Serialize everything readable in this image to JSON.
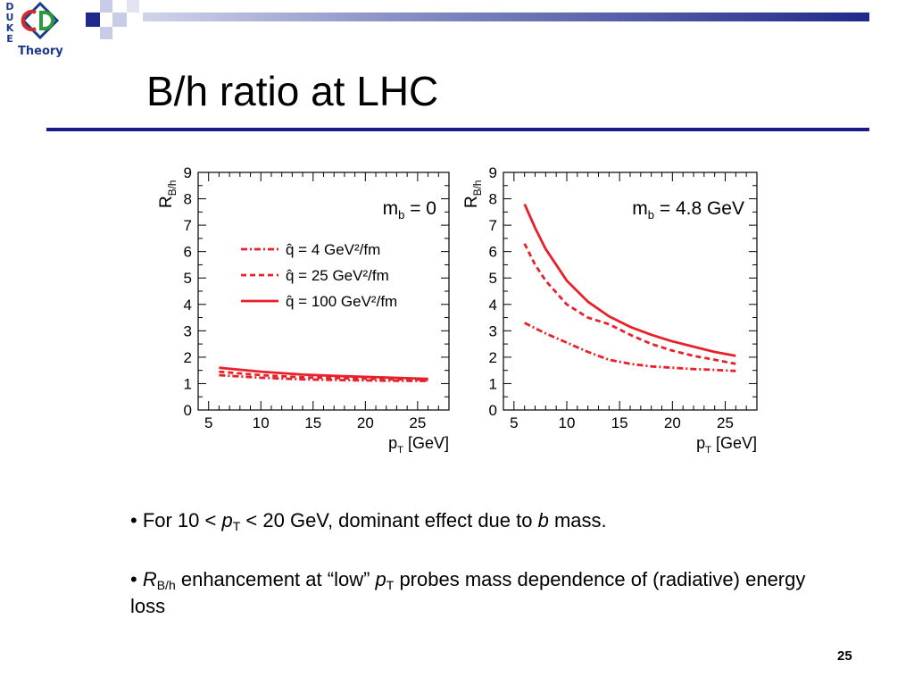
{
  "logo": {
    "letters": [
      "D",
      "U",
      "K",
      "E"
    ],
    "word": "Theory"
  },
  "slide": {
    "title": "B/h ratio at LHC",
    "page_number": "25",
    "bullets": [
      {
        "parts": [
          "• For 10 < ",
          "p",
          "T",
          " < 20 GeV, dominant effect due to ",
          "b",
          " mass."
        ]
      },
      {
        "parts": [
          "• ",
          "R",
          "B/h",
          " enhancement at “low” ",
          "p",
          "T",
          " probes mass dependence of (radiative) energy loss"
        ]
      }
    ]
  },
  "colors": {
    "accent": "#1a1a8c",
    "curve": "#e8202a"
  },
  "chart_data": [
    {
      "type": "line",
      "annotation": {
        "main": "m",
        "sub": "b",
        "rest": " = 0"
      },
      "ylabel": {
        "main": "R",
        "sub": "B/h"
      },
      "xlabel": {
        "main": "p",
        "sub": "T",
        "rest": " [GeV]"
      },
      "xlim": [
        4,
        28
      ],
      "ylim": [
        0,
        9
      ],
      "x_ticks": [
        5,
        10,
        15,
        20,
        25
      ],
      "y_ticks": [
        0,
        1,
        2,
        3,
        4,
        5,
        6,
        7,
        8,
        9
      ],
      "legend_position": "right",
      "series": [
        {
          "name": "q̂ = 4 GeV²/fm",
          "style": "dashdot",
          "x": [
            6,
            10,
            14,
            18,
            22,
            26
          ],
          "y": [
            1.32,
            1.22,
            1.16,
            1.13,
            1.11,
            1.1
          ]
        },
        {
          "name": "q̂ = 25 GeV²/fm",
          "style": "dashed",
          "x": [
            6,
            10,
            14,
            18,
            22,
            26
          ],
          "y": [
            1.45,
            1.32,
            1.24,
            1.2,
            1.17,
            1.14
          ]
        },
        {
          "name": "q̂ = 100 GeV²/fm",
          "style": "solid",
          "x": [
            6,
            10,
            14,
            18,
            22,
            26
          ],
          "y": [
            1.6,
            1.45,
            1.34,
            1.28,
            1.23,
            1.18
          ]
        }
      ]
    },
    {
      "type": "line",
      "annotation": {
        "main": "m",
        "sub": "b",
        "rest": " = 4.8 GeV"
      },
      "ylabel": {
        "main": "R",
        "sub": "B/h"
      },
      "xlabel": {
        "main": "p",
        "sub": "T",
        "rest": " [GeV]"
      },
      "xlim": [
        4,
        28
      ],
      "ylim": [
        0,
        9
      ],
      "x_ticks": [
        5,
        10,
        15,
        20,
        25
      ],
      "y_ticks": [
        0,
        1,
        2,
        3,
        4,
        5,
        6,
        7,
        8,
        9
      ],
      "series": [
        {
          "style": "dashdot",
          "x": [
            6,
            8,
            10,
            12,
            14,
            16,
            18,
            20,
            22,
            24,
            26
          ],
          "y": [
            3.3,
            2.9,
            2.55,
            2.2,
            1.9,
            1.75,
            1.65,
            1.6,
            1.55,
            1.52,
            1.48
          ]
        },
        {
          "style": "dashed",
          "x": [
            6,
            7,
            8,
            10,
            12,
            14,
            16,
            18,
            20,
            22,
            24,
            26
          ],
          "y": [
            6.3,
            5.5,
            4.9,
            4.0,
            3.5,
            3.25,
            2.85,
            2.5,
            2.25,
            2.05,
            1.9,
            1.75
          ]
        },
        {
          "style": "solid",
          "x": [
            6,
            7,
            8,
            10,
            12,
            14,
            16,
            18,
            20,
            22,
            24,
            26
          ],
          "y": [
            7.8,
            6.9,
            6.1,
            4.9,
            4.1,
            3.55,
            3.15,
            2.85,
            2.6,
            2.4,
            2.2,
            2.05
          ]
        }
      ]
    }
  ]
}
